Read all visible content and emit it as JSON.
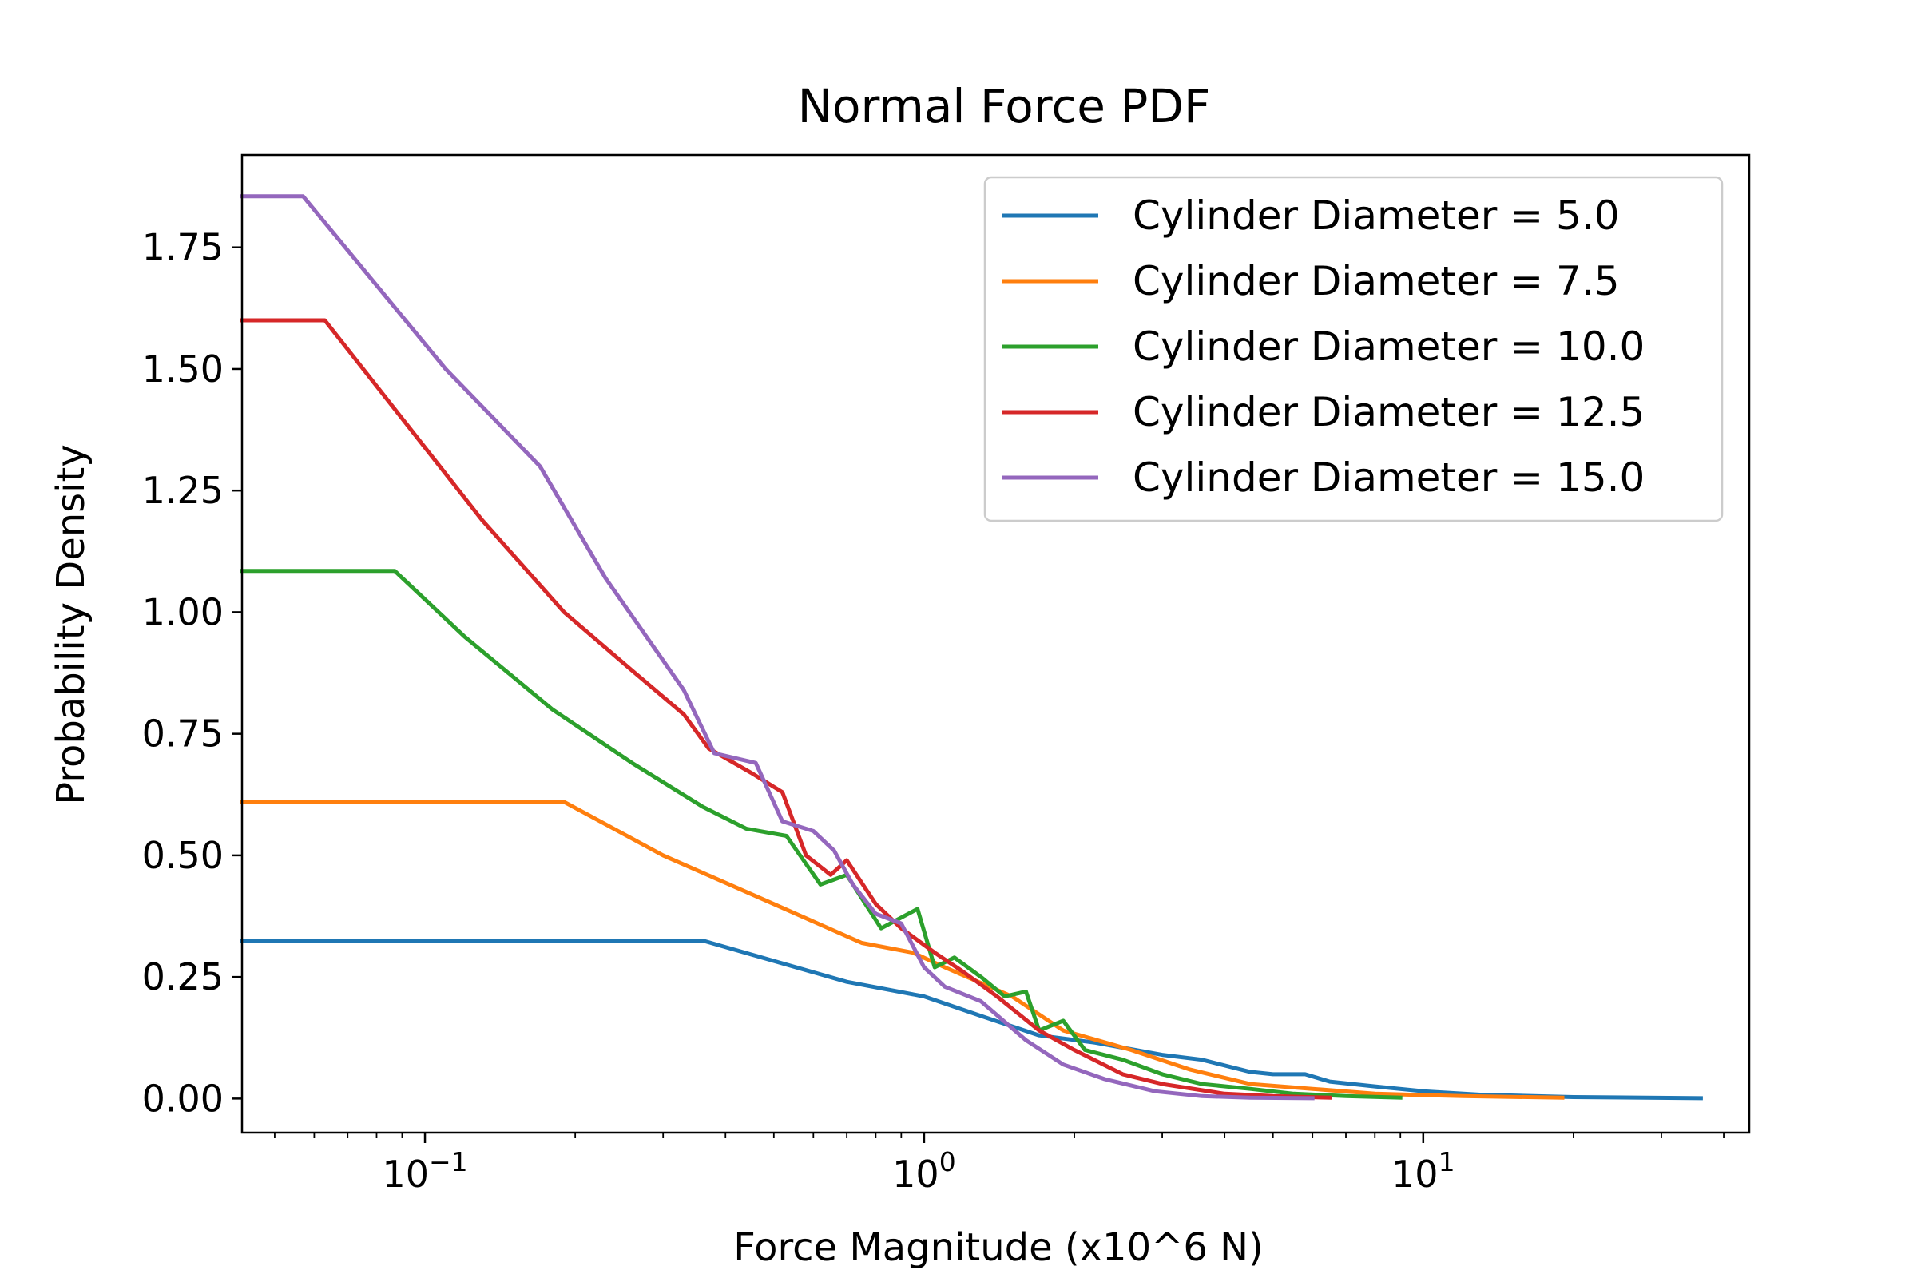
{
  "chart_data": {
    "type": "line",
    "title": "Normal Force PDF",
    "xlabel": "Force Magnitude (x10^6 N)",
    "ylabel": "Probability Density",
    "xscale": "log",
    "xlim": [
      0.043,
      45
    ],
    "ylim": [
      -0.07,
      1.94
    ],
    "grid": false,
    "legend_position": "top-right",
    "x_tick_labels": [
      {
        "value": 0.1,
        "base": "10",
        "exp": "−1"
      },
      {
        "value": 1,
        "base": "10",
        "exp": "0"
      },
      {
        "value": 10,
        "base": "10",
        "exp": "1"
      }
    ],
    "y_ticks": [
      0.0,
      0.25,
      0.5,
      0.75,
      1.0,
      1.25,
      1.5,
      1.75
    ],
    "y_tick_labels": [
      "0.00",
      "0.25",
      "0.50",
      "0.75",
      "1.00",
      "1.25",
      "1.50",
      "1.75"
    ],
    "series": [
      {
        "name": "Cylinder Diameter = 5.0",
        "color": "#1f77b4",
        "x": [
          0.043,
          0.36,
          0.7,
          1.0,
          1.3,
          1.7,
          2.2,
          3.0,
          3.6,
          4.5,
          5.0,
          5.8,
          6.5,
          8.0,
          10.0,
          13.0,
          20.0,
          36.0
        ],
        "y": [
          0.325,
          0.325,
          0.24,
          0.21,
          0.17,
          0.13,
          0.115,
          0.09,
          0.08,
          0.055,
          0.05,
          0.05,
          0.035,
          0.025,
          0.015,
          0.008,
          0.003,
          0.001
        ]
      },
      {
        "name": "Cylinder Diameter = 7.5",
        "color": "#ff7f0e",
        "x": [
          0.043,
          0.19,
          0.3,
          0.5,
          0.75,
          0.95,
          1.1,
          1.5,
          1.9,
          2.6,
          3.4,
          4.5,
          6.0,
          8.0,
          12.0,
          19.0
        ],
        "y": [
          0.61,
          0.61,
          0.5,
          0.4,
          0.32,
          0.3,
          0.27,
          0.21,
          0.14,
          0.1,
          0.06,
          0.03,
          0.02,
          0.01,
          0.005,
          0.002
        ]
      },
      {
        "name": "Cylinder Diameter = 10.0",
        "color": "#2ca02c",
        "x": [
          0.043,
          0.087,
          0.12,
          0.18,
          0.26,
          0.36,
          0.44,
          0.53,
          0.62,
          0.7,
          0.82,
          0.97,
          1.05,
          1.15,
          1.3,
          1.45,
          1.6,
          1.7,
          1.9,
          2.1,
          2.5,
          3.0,
          3.6,
          4.5,
          5.5,
          7.0,
          9.0
        ],
        "y": [
          1.085,
          1.085,
          0.95,
          0.8,
          0.69,
          0.6,
          0.555,
          0.54,
          0.44,
          0.46,
          0.35,
          0.39,
          0.27,
          0.29,
          0.25,
          0.21,
          0.22,
          0.14,
          0.16,
          0.1,
          0.08,
          0.05,
          0.03,
          0.02,
          0.01,
          0.005,
          0.002
        ]
      },
      {
        "name": "Cylinder Diameter = 12.5",
        "color": "#d62728",
        "x": [
          0.043,
          0.063,
          0.13,
          0.19,
          0.26,
          0.33,
          0.37,
          0.45,
          0.52,
          0.58,
          0.65,
          0.7,
          0.8,
          0.9,
          1.05,
          1.2,
          1.4,
          1.7,
          2.0,
          2.5,
          3.0,
          4.0,
          5.0,
          6.5
        ],
        "y": [
          1.6,
          1.6,
          1.19,
          1.0,
          0.88,
          0.79,
          0.72,
          0.67,
          0.63,
          0.5,
          0.46,
          0.49,
          0.4,
          0.35,
          0.3,
          0.26,
          0.21,
          0.14,
          0.1,
          0.05,
          0.03,
          0.01,
          0.005,
          0.002
        ]
      },
      {
        "name": "Cylinder Diameter = 15.0",
        "color": "#9467bd",
        "x": [
          0.043,
          0.057,
          0.11,
          0.17,
          0.23,
          0.33,
          0.38,
          0.46,
          0.52,
          0.6,
          0.66,
          0.72,
          0.8,
          0.9,
          1.0,
          1.1,
          1.3,
          1.6,
          1.9,
          2.3,
          2.9,
          3.6,
          4.5,
          6.0
        ],
        "y": [
          1.855,
          1.855,
          1.5,
          1.3,
          1.07,
          0.84,
          0.71,
          0.69,
          0.57,
          0.55,
          0.51,
          0.44,
          0.38,
          0.36,
          0.27,
          0.23,
          0.2,
          0.12,
          0.07,
          0.04,
          0.015,
          0.005,
          0.002,
          0.001
        ]
      }
    ]
  }
}
